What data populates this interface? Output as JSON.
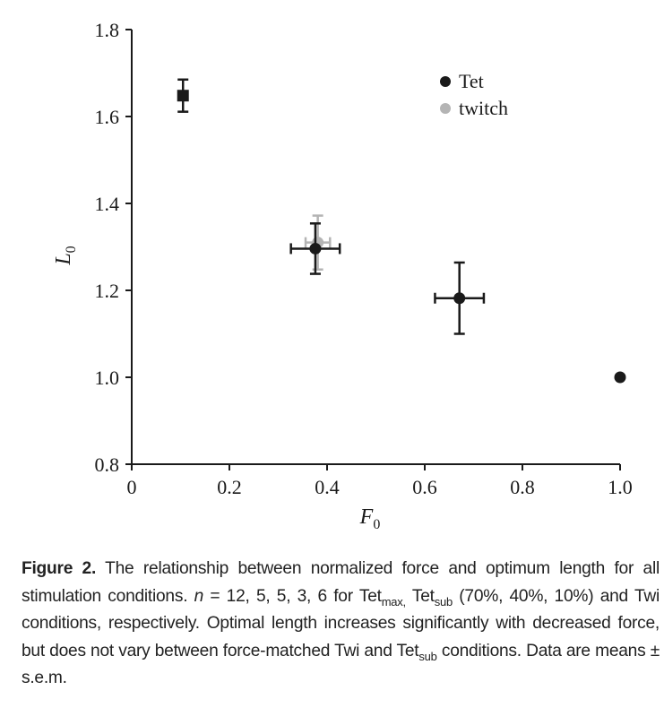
{
  "chart_data": {
    "type": "scatter",
    "xlabel": "F",
    "xlabel_sub": "0",
    "ylabel": "L",
    "ylabel_sub": "0",
    "xlim": [
      0,
      1.0
    ],
    "ylim": [
      0.8,
      1.8
    ],
    "xticks": [
      "0",
      "0.2",
      "0.4",
      "0.6",
      "0.8",
      "1.0"
    ],
    "yticks": [
      "0.8",
      "1.0",
      "1.2",
      "1.4",
      "1.6",
      "1.8"
    ],
    "grid": false,
    "legend_position": "top-right",
    "series": [
      {
        "name": "Tet",
        "color": "#1a1a1a",
        "points": [
          {
            "x": 0.105,
            "y": 1.648,
            "xerr": 0.008,
            "yerr": 0.037,
            "marker": "square"
          },
          {
            "x": 0.376,
            "y": 1.296,
            "xerr": 0.05,
            "yerr": 0.058,
            "marker": "circle"
          },
          {
            "x": 0.671,
            "y": 1.182,
            "xerr": 0.05,
            "yerr": 0.082,
            "marker": "circle"
          },
          {
            "x": 1.0,
            "y": 1.0,
            "xerr": 0,
            "yerr": 0,
            "marker": "circle"
          }
        ]
      },
      {
        "name": "twitch",
        "color": "#b4b4b4",
        "points": [
          {
            "x": 0.381,
            "y": 1.31,
            "xerr": 0.025,
            "yerr": 0.062,
            "marker": "circle"
          }
        ]
      }
    ]
  },
  "caption": {
    "label": "Figure 2.",
    "t1": " The relationship between normalized force and optimum length for all stimulation conditions. ",
    "n_var": "n",
    "t2": " = 12, 5, 5, 3, 6 for Tet",
    "sub_max": "max,",
    "t3": " Tet",
    "sub1": "sub",
    "t4": " (70%, 40%, 10%) and Twi conditions, respectively. Optimal length increases significantly with decreased force, but does not vary between force-matched Twi and Tet",
    "sub2": "sub",
    "t5": " conditions. Data are means ± s.e.m."
  }
}
